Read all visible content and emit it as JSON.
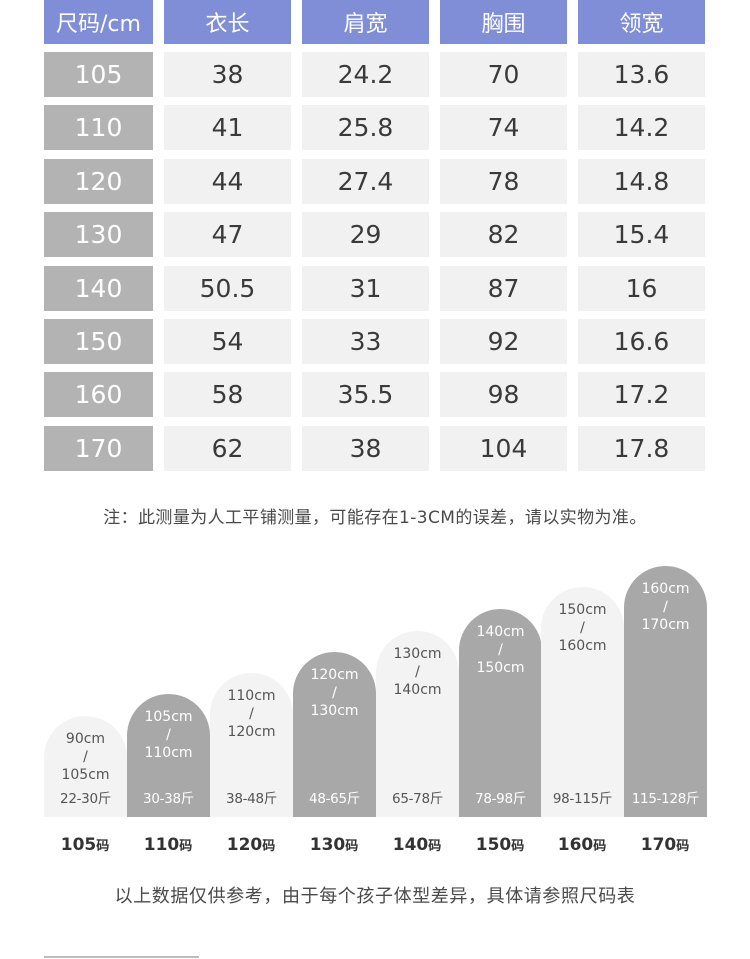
{
  "table": {
    "headers": [
      "尺码/cm",
      "衣长",
      "肩宽",
      "胸围",
      "领宽"
    ],
    "rows": [
      [
        "105",
        "38",
        "24.2",
        "70",
        "13.6"
      ],
      [
        "110",
        "41",
        "25.8",
        "74",
        "14.2"
      ],
      [
        "120",
        "44",
        "27.4",
        "78",
        "14.8"
      ],
      [
        "130",
        "47",
        "29",
        "82",
        "15.4"
      ],
      [
        "140",
        "50.5",
        "31",
        "87",
        "16"
      ],
      [
        "150",
        "54",
        "33",
        "92",
        "16.6"
      ],
      [
        "160",
        "58",
        "35.5",
        "98",
        "17.2"
      ],
      [
        "170",
        "62",
        "38",
        "104",
        "17.8"
      ]
    ]
  },
  "note": "注：此测量为人工平铺测量，可能存在1-3CM的误差，请以实物为准。",
  "size_chart": [
    {
      "height": "90cm\n/\n105cm",
      "weight": "22-30斤",
      "size": "105",
      "unit": "码",
      "tone": "light"
    },
    {
      "height": "105cm\n/\n110cm",
      "weight": "30-38斤",
      "size": "110",
      "unit": "码",
      "tone": "dark"
    },
    {
      "height": "110cm\n/\n120cm",
      "weight": "38-48斤",
      "size": "120",
      "unit": "码",
      "tone": "light"
    },
    {
      "height": "120cm\n/\n130cm",
      "weight": "48-65斤",
      "size": "130",
      "unit": "码",
      "tone": "dark"
    },
    {
      "height": "130cm\n/\n140cm",
      "weight": "65-78斤",
      "size": "140",
      "unit": "码",
      "tone": "light"
    },
    {
      "height": "140cm\n/\n150cm",
      "weight": "78-98斤",
      "size": "150",
      "unit": "码",
      "tone": "dark"
    },
    {
      "height": "150cm\n/\n160cm",
      "weight": "98-115斤",
      "size": "160",
      "unit": "码",
      "tone": "light"
    },
    {
      "height": "160cm\n/\n170cm",
      "weight": "115-128斤",
      "size": "170",
      "unit": "码",
      "tone": "dark"
    }
  ],
  "footer": "以上数据仅供参考，由于每个孩子体型差异，具体请参照尺码表",
  "colors": {
    "header": "#7f8ed6",
    "size_column": "#b3b3b3",
    "value_cell": "#f1f1f1",
    "bar_dark": "#a8a8a8",
    "bar_light": "#f3f3f3"
  }
}
